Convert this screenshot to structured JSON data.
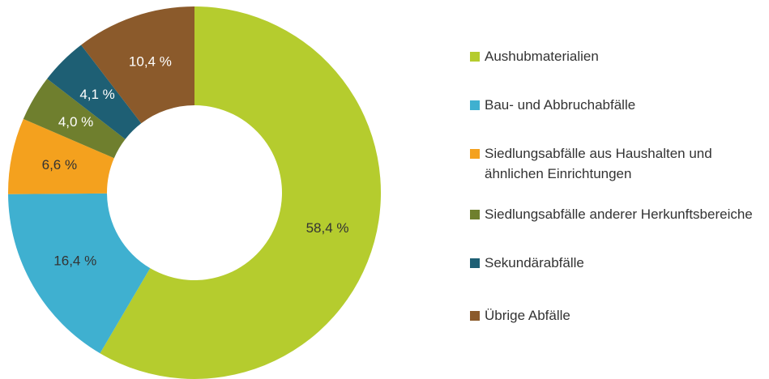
{
  "chart_data": {
    "type": "donut",
    "categories": [
      "Aushubmaterialien",
      "Bau- und Abbruchabfälle",
      "Siedlungsabfälle aus Haushalten und ähnlichen Einrichtungen",
      "Siedlungsabfälle anderer Herkunftsbereiche",
      "Sekundärabfälle",
      "Übrige Abfälle"
    ],
    "values": [
      58.4,
      16.4,
      6.6,
      4.0,
      4.1,
      10.4
    ],
    "value_labels": [
      "58,4 %",
      "16,4 %",
      "6,6 %",
      "4,0 %",
      "4,1 %",
      "10,4 %"
    ],
    "colors": [
      "#b5cc2e",
      "#3fb0d0",
      "#f4a11e",
      "#6f7f2e",
      "#1e5f74",
      "#8b5a2b"
    ]
  }
}
